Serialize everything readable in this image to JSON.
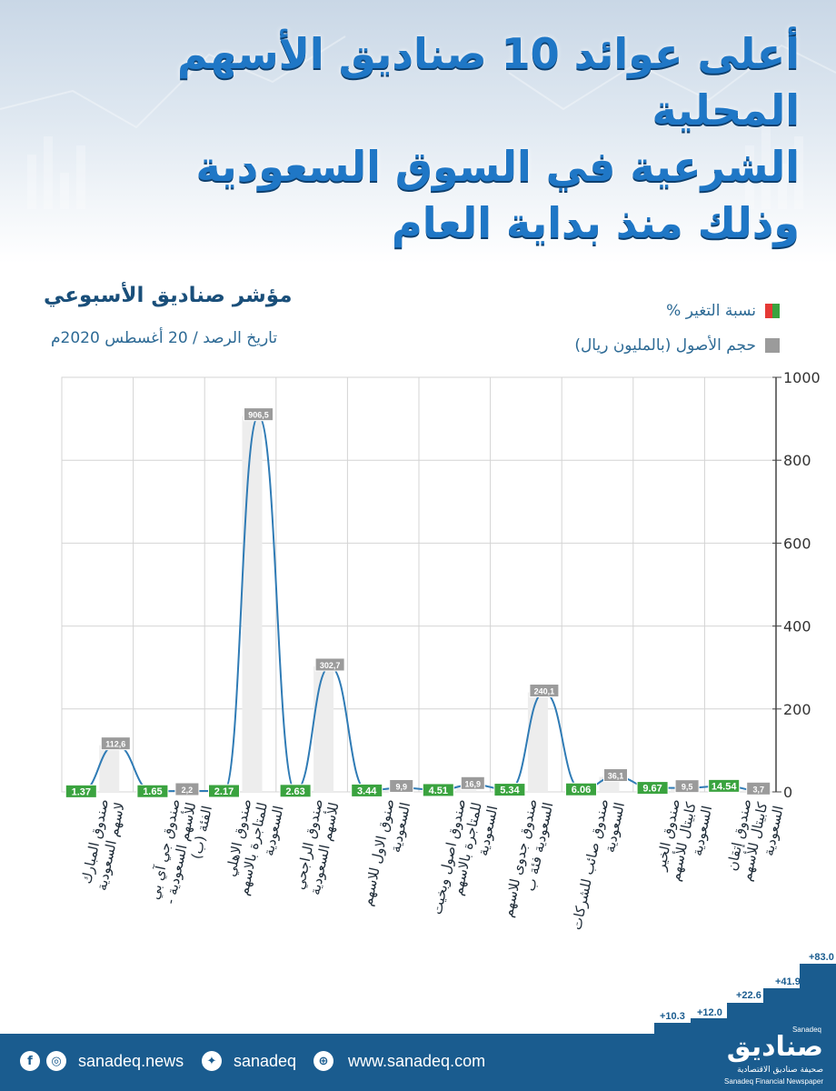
{
  "header": {
    "title_line1": "أعلى عوائد 10 صناديق الأسهم المحلية",
    "title_line2": "الشرعية في السوق السعودية",
    "title_line3": "وذلك منذ بداية العام"
  },
  "subtitle": "مؤشر صناديق الأسبوعي",
  "date_line": "تاريخ الرصد / 20 أغسطس 2020م",
  "legend": {
    "change_label": "نسبة التغير %",
    "assets_label": "حجم الأصول (بالمليون ريال)"
  },
  "colors": {
    "line": "#2f7bb5",
    "change_box": "#3aa33f",
    "assets_box": "#9b9b9b",
    "footer": "#1a5c8f",
    "title": "#1f77c6"
  },
  "chart_data": {
    "type": "line",
    "ylim": [
      0,
      1000
    ],
    "y_ticks": [
      "0",
      "200",
      "400",
      "600",
      "800",
      "1000"
    ],
    "grid": true,
    "legend_position": "top-right",
    "categories": [
      "صندوق المبارك لاسهم السعودية",
      "صندوق جي آي بي للأسهم السعودية - الفئة (ب)",
      "صندوق الاهلي للمتاجرة بالاسهم السعودية",
      "صندوق الراجحي للأسهم السعودية",
      "صنوق الاول للاسهم السعودية",
      "صندوق اصول وبخيت للمتاجرة بالاسهم السعودية",
      "صندوق جدوى للاسهم السعودية فئة ب",
      "صندوق صائب للشركات السعودية",
      "صندوق الخير كابيتال للأسهم السعودية",
      "صندوق إتقان كابيتال للأسهم السعودية"
    ],
    "series": [
      {
        "name": "نسبة التغير %",
        "values": [
          1.37,
          1.65,
          2.17,
          2.63,
          3.44,
          4.51,
          5.34,
          6.06,
          9.67,
          14.54
        ],
        "labels": [
          "1.37",
          "1.65",
          "2.17",
          "2.63",
          "3.44",
          "4.51",
          "5.34",
          "6.06",
          "9.67",
          "14.54"
        ]
      },
      {
        "name": "حجم الأصول (بالمليون ريال)",
        "values": [
          112.6,
          2.2,
          906.5,
          302.7,
          9.9,
          16.9,
          240.1,
          36.1,
          9.5,
          3.7
        ],
        "labels": [
          "112,6",
          "2,2",
          "906,5",
          "302,7",
          "9,9",
          "16,9",
          "240,1",
          "36,1",
          "9,5",
          "3,7"
        ]
      }
    ]
  },
  "footer": {
    "facebook_icon": "facebook-icon",
    "instagram_icon": "instagram-icon",
    "handle1": "sanadeq.news",
    "twitter_icon": "twitter-icon",
    "handle2": "sanadeq",
    "globe_icon": "globe-icon",
    "website": "www.sanadeq.com",
    "logo_text": "صناديق",
    "logo_latin": "Sanadeq",
    "logo_sub_ar": "صحيفة صناديق الاقتصادية",
    "logo_sub_en": "Sanadeq Financial Newspaper"
  },
  "stairs": [
    "+10.3",
    "+12.0",
    "+22.6",
    "+41.9",
    "+83.0"
  ]
}
